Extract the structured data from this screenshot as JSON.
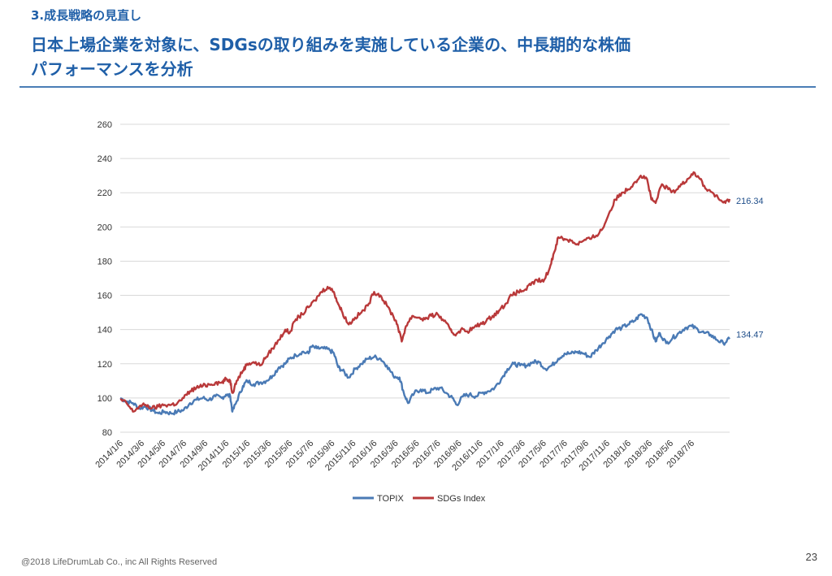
{
  "section_label": "3.成長戦略の見直し",
  "title_line1": "日本上場企業を対象に、SDGsの取り組みを実施している企業の、中長期的な株価",
  "title_line2": "パフォーマンスを分析",
  "footer": "@2018 LifeDrumLab Co., inc  All Rights Reserved",
  "page_number": "23",
  "colors": {
    "title": "#1f5fa8",
    "topix": "#4a7ab5",
    "sdgs": "#b9393a",
    "grid": "#d9d9d9"
  },
  "chart_data": {
    "type": "line",
    "title": "",
    "xlabel": "",
    "ylabel": "",
    "ylim": [
      80,
      260
    ],
    "yticks": [
      80,
      100,
      120,
      140,
      160,
      180,
      200,
      220,
      240,
      260
    ],
    "xticks": [
      "2014/1/6",
      "2014/3/6",
      "2014/5/6",
      "2014/7/6",
      "2014/9/6",
      "2014/11/6",
      "2015/1/6",
      "2015/3/6",
      "2015/5/6",
      "2015/7/6",
      "2015/9/6",
      "2015/11/6",
      "2016/1/6",
      "2016/3/6",
      "2016/5/6",
      "2016/7/6",
      "2016/9/6",
      "2016/11/6",
      "2017/1/6",
      "2017/3/6",
      "2017/5/6",
      "2017/7/6",
      "2017/9/6",
      "2017/11/6",
      "2018/1/6",
      "2018/3/6",
      "2018/5/6",
      "2018/7/6"
    ],
    "x_end": 28.8,
    "grid": true,
    "legend_position": "bottom",
    "end_labels": [
      "216.34",
      "134.47"
    ],
    "series": [
      {
        "name": "TOPIX",
        "points": [
          [
            0,
            100
          ],
          [
            0.3,
            98
          ],
          [
            0.6,
            97
          ],
          [
            0.9,
            94
          ],
          [
            1.2,
            95
          ],
          [
            1.5,
            93
          ],
          [
            1.8,
            91
          ],
          [
            2.1,
            92
          ],
          [
            2.4,
            91
          ],
          [
            2.7,
            92
          ],
          [
            3,
            93
          ],
          [
            3.3,
            97
          ],
          [
            3.6,
            99
          ],
          [
            3.9,
            100
          ],
          [
            4.2,
            99
          ],
          [
            4.5,
            101
          ],
          [
            4.8,
            100
          ],
          [
            5,
            102
          ],
          [
            5.2,
            101
          ],
          [
            5.3,
            92
          ],
          [
            5.5,
            98
          ],
          [
            5.8,
            107
          ],
          [
            6,
            110
          ],
          [
            6.3,
            108
          ],
          [
            6.6,
            109
          ],
          [
            6.9,
            110
          ],
          [
            7.2,
            113
          ],
          [
            7.5,
            118
          ],
          [
            7.8,
            120
          ],
          [
            8,
            123
          ],
          [
            8.3,
            125
          ],
          [
            8.6,
            127
          ],
          [
            8.9,
            126
          ],
          [
            9,
            130
          ],
          [
            9.3,
            129
          ],
          [
            9.6,
            129
          ],
          [
            9.9,
            128
          ],
          [
            10.1,
            126
          ],
          [
            10.3,
            118
          ],
          [
            10.5,
            116
          ],
          [
            10.8,
            112
          ],
          [
            11.1,
            117
          ],
          [
            11.4,
            120
          ],
          [
            11.7,
            123
          ],
          [
            12,
            124
          ],
          [
            12.3,
            123
          ],
          [
            12.6,
            119
          ],
          [
            12.9,
            113
          ],
          [
            13.2,
            112
          ],
          [
            13.4,
            103
          ],
          [
            13.6,
            97
          ],
          [
            13.9,
            103
          ],
          [
            14.2,
            105
          ],
          [
            14.5,
            103
          ],
          [
            14.8,
            105
          ],
          [
            15.1,
            106
          ],
          [
            15.4,
            103
          ],
          [
            15.7,
            100
          ],
          [
            15.9,
            96
          ],
          [
            16.2,
            101
          ],
          [
            16.5,
            102
          ],
          [
            16.8,
            101
          ],
          [
            17.1,
            103
          ],
          [
            17.4,
            104
          ],
          [
            17.7,
            106
          ],
          [
            18,
            111
          ],
          [
            18.3,
            117
          ],
          [
            18.6,
            120
          ],
          [
            18.9,
            119
          ],
          [
            19.2,
            119
          ],
          [
            19.5,
            121
          ],
          [
            19.8,
            121
          ],
          [
            20.1,
            117
          ],
          [
            20.4,
            119
          ],
          [
            20.7,
            123
          ],
          [
            21,
            126
          ],
          [
            21.3,
            126
          ],
          [
            21.6,
            127
          ],
          [
            21.9,
            126
          ],
          [
            22.2,
            124
          ],
          [
            22.5,
            128
          ],
          [
            22.8,
            132
          ],
          [
            23.1,
            136
          ],
          [
            23.4,
            140
          ],
          [
            23.7,
            141
          ],
          [
            24,
            143
          ],
          [
            24.3,
            145
          ],
          [
            24.6,
            149
          ],
          [
            24.9,
            147
          ],
          [
            25.1,
            140
          ],
          [
            25.3,
            133
          ],
          [
            25.5,
            138
          ],
          [
            25.8,
            132
          ],
          [
            26.1,
            135
          ],
          [
            26.4,
            138
          ],
          [
            26.7,
            141
          ],
          [
            27,
            142
          ],
          [
            27.3,
            140
          ],
          [
            27.6,
            138
          ],
          [
            27.9,
            137
          ],
          [
            28.2,
            134
          ],
          [
            28.5,
            132
          ],
          [
            28.8,
            134.47
          ]
        ]
      },
      {
        "name": "SDGs Index",
        "points": [
          [
            0,
            99
          ],
          [
            0.3,
            97
          ],
          [
            0.6,
            92
          ],
          [
            0.9,
            95
          ],
          [
            1.2,
            96
          ],
          [
            1.5,
            94
          ],
          [
            1.8,
            95
          ],
          [
            2.1,
            96
          ],
          [
            2.4,
            96
          ],
          [
            2.7,
            97
          ],
          [
            3,
            100
          ],
          [
            3.3,
            104
          ],
          [
            3.6,
            106
          ],
          [
            3.9,
            107
          ],
          [
            4.2,
            108
          ],
          [
            4.5,
            109
          ],
          [
            4.8,
            109
          ],
          [
            5,
            111
          ],
          [
            5.2,
            110
          ],
          [
            5.3,
            103
          ],
          [
            5.5,
            110
          ],
          [
            5.8,
            116
          ],
          [
            6,
            120
          ],
          [
            6.3,
            121
          ],
          [
            6.6,
            119
          ],
          [
            6.9,
            124
          ],
          [
            7.2,
            129
          ],
          [
            7.5,
            134
          ],
          [
            7.8,
            140
          ],
          [
            8,
            138
          ],
          [
            8.3,
            146
          ],
          [
            8.6,
            149
          ],
          [
            8.9,
            153
          ],
          [
            9.2,
            157
          ],
          [
            9.5,
            162
          ],
          [
            9.8,
            165
          ],
          [
            10.1,
            162
          ],
          [
            10.3,
            155
          ],
          [
            10.5,
            150
          ],
          [
            10.8,
            143
          ],
          [
            11.1,
            147
          ],
          [
            11.4,
            150
          ],
          [
            11.7,
            154
          ],
          [
            12,
            162
          ],
          [
            12.3,
            160
          ],
          [
            12.6,
            154
          ],
          [
            12.9,
            148
          ],
          [
            13.1,
            143
          ],
          [
            13.3,
            133
          ],
          [
            13.5,
            142
          ],
          [
            13.8,
            148
          ],
          [
            14.1,
            147
          ],
          [
            14.4,
            146
          ],
          [
            14.7,
            148
          ],
          [
            15,
            149
          ],
          [
            15.3,
            145
          ],
          [
            15.6,
            140
          ],
          [
            15.8,
            137
          ],
          [
            16.1,
            140
          ],
          [
            16.4,
            139
          ],
          [
            16.7,
            141
          ],
          [
            17,
            143
          ],
          [
            17.3,
            145
          ],
          [
            17.6,
            148
          ],
          [
            17.9,
            151
          ],
          [
            18.2,
            155
          ],
          [
            18.5,
            160
          ],
          [
            18.8,
            162
          ],
          [
            19.1,
            163
          ],
          [
            19.4,
            166
          ],
          [
            19.7,
            169
          ],
          [
            20,
            168
          ],
          [
            20.3,
            176
          ],
          [
            20.5,
            185
          ],
          [
            20.7,
            194
          ],
          [
            21,
            193
          ],
          [
            21.3,
            192
          ],
          [
            21.6,
            190
          ],
          [
            21.9,
            192
          ],
          [
            22.2,
            193
          ],
          [
            22.5,
            195
          ],
          [
            22.8,
            199
          ],
          [
            23.1,
            208
          ],
          [
            23.4,
            216
          ],
          [
            23.7,
            220
          ],
          [
            24,
            222
          ],
          [
            24.3,
            226
          ],
          [
            24.6,
            230
          ],
          [
            24.9,
            228
          ],
          [
            25.1,
            216
          ],
          [
            25.3,
            214
          ],
          [
            25.6,
            225
          ],
          [
            25.9,
            222
          ],
          [
            26.2,
            220
          ],
          [
            26.5,
            225
          ],
          [
            26.8,
            228
          ],
          [
            27.1,
            232
          ],
          [
            27.4,
            228
          ],
          [
            27.7,
            222
          ],
          [
            28,
            220
          ],
          [
            28.3,
            216
          ],
          [
            28.6,
            214
          ],
          [
            28.8,
            216.34
          ]
        ]
      }
    ]
  }
}
